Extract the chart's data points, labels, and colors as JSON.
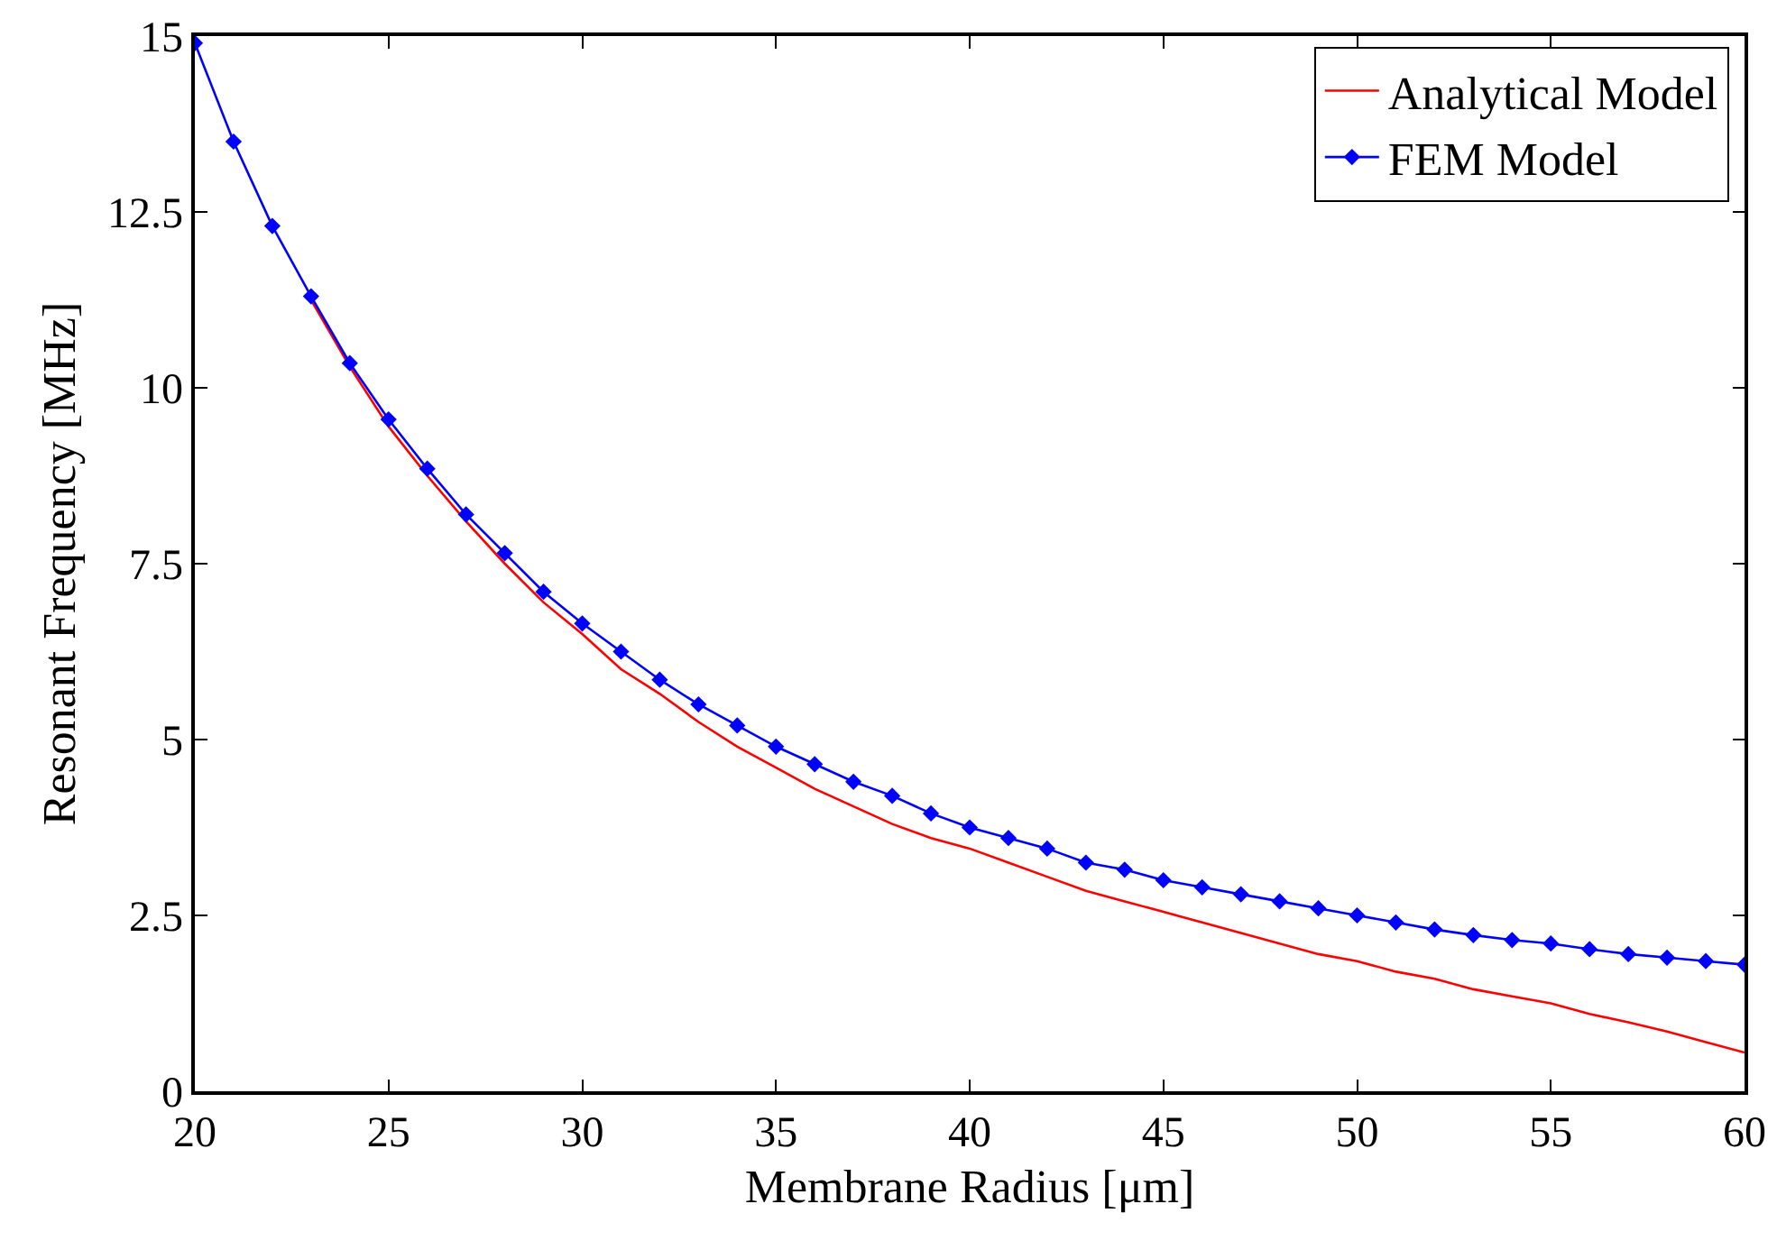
{
  "chart_data": {
    "type": "line",
    "xlabel": "Membrane Radius [μm]",
    "ylabel": "Resonant Frequency [MHz]",
    "x": [
      20,
      21,
      22,
      23,
      24,
      25,
      26,
      27,
      28,
      29,
      30,
      31,
      32,
      33,
      34,
      35,
      36,
      37,
      38,
      39,
      40,
      41,
      42,
      43,
      44,
      45,
      46,
      47,
      48,
      49,
      50,
      51,
      52,
      53,
      54,
      55,
      56,
      57,
      58,
      59,
      60
    ],
    "series": [
      {
        "name": "Analytical Model",
        "color": "#ff0000",
        "marker": "none",
        "values": [
          null,
          null,
          null,
          11.25,
          10.3,
          9.45,
          8.75,
          8.1,
          7.5,
          6.95,
          6.5,
          6.0,
          5.65,
          5.25,
          4.9,
          4.6,
          4.3,
          4.05,
          3.8,
          3.6,
          3.45,
          3.25,
          3.05,
          2.85,
          2.7,
          2.55,
          2.4,
          2.25,
          2.1,
          1.95,
          1.85,
          1.7,
          1.6,
          1.45,
          1.35,
          1.25,
          1.1,
          0.98,
          0.85,
          0.7,
          0.55
        ]
      },
      {
        "name": "FEM Model",
        "color": "#0000ff",
        "marker": "diamond",
        "values": [
          14.9,
          13.5,
          12.3,
          11.3,
          10.35,
          9.55,
          8.85,
          8.2,
          7.65,
          7.1,
          6.65,
          6.25,
          5.85,
          5.5,
          5.2,
          4.9,
          4.65,
          4.4,
          4.2,
          3.95,
          3.75,
          3.6,
          3.45,
          3.25,
          3.15,
          3.0,
          2.9,
          2.8,
          2.7,
          2.6,
          2.5,
          2.4,
          2.3,
          2.22,
          2.15,
          2.1,
          2.02,
          1.95,
          1.9,
          1.85,
          1.8
        ]
      }
    ],
    "xlim": [
      20,
      60
    ],
    "xticks": [
      20,
      25,
      30,
      35,
      40,
      45,
      50,
      55,
      60
    ],
    "ylim": [
      0,
      15
    ],
    "yticks": [
      0,
      2.5,
      5,
      7.5,
      10,
      12.5,
      15
    ],
    "grid": false,
    "legend": "top right"
  }
}
